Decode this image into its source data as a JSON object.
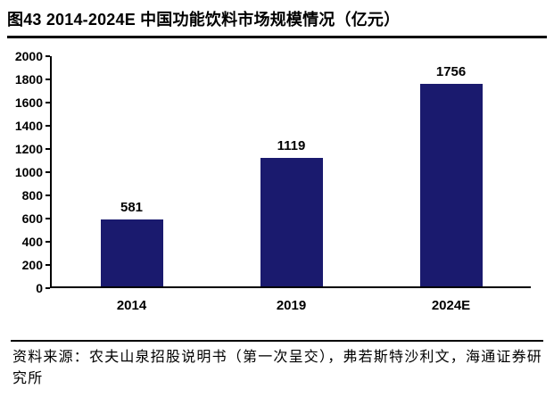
{
  "title": "图43 2014-2024E 中国功能饮料市场规模情况（亿元）",
  "source": {
    "line": "资料来源：农夫山泉招股说明书（第一次呈交），弗若斯特沙利文，海通证券研究所"
  },
  "chart_data": {
    "type": "bar",
    "categories": [
      "2014",
      "2019",
      "2024E"
    ],
    "values": [
      581,
      1119,
      1756
    ],
    "title": "图43 2014-2024E 中国功能饮料市场规模情况（亿元）",
    "xlabel": "",
    "ylabel": "",
    "ylim": [
      0,
      2000
    ],
    "ytick_step": 200,
    "bar_color": "#1A1A6E",
    "axis_color": "#000000",
    "grid": false,
    "legend": false
  }
}
